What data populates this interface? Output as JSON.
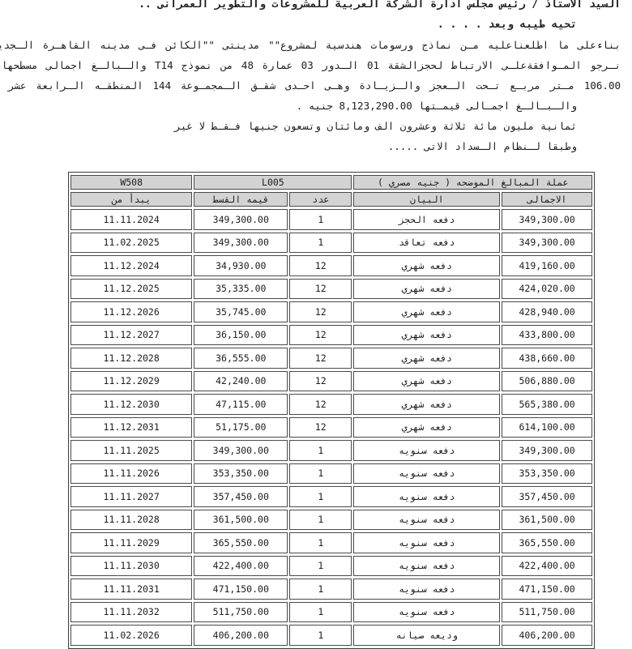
{
  "page": {
    "background": "#ffffff",
    "text_color": "#1c1c1c",
    "table_header_bg": "#d3d3d3",
    "table_border_color": "#3c3c3c"
  },
  "document": {
    "title_line": "السيد الاستاذ / رئيس مجلس ادارة الشركة العربية للمشروعات والتطوير العمرانى ..",
    "greeting": "تحيه طيبه وبعد . . . .",
    "body_lines": [
      "بناءعلى ما اطلعناعليه مـن نماذج ورسومات هندسية لمشروع\"\" مدينتى \"\"الكائن فـى مدينه القاهـرة الـجديـده",
      "نـرجو المـوافقةعلـى الارتباط لحجزالشقة 01 الـدور 03 عمارة 48 من نموذج T14 والـبالـغ اجمالى مسطحها",
      "106.00 مـتر مربـع تـحت الـعجز والـزيـادة وهـى احـدى شقـق الـمجمـوعة 144 المنطقـه الـرابعة عشر",
      "والـبـالـغ اجمـالى قيمـتها 8,123,290.00 جنيه .",
      "ثمانية مليون مائة ثلاثة وعشرون الف ومائتان وتسعون جنيها فـقـط لا غير",
      "وطبقا لـنظام الـسداد الاتى ....."
    ]
  },
  "table": {
    "group_header": {
      "unit_code": "W508",
      "location_code": "L005",
      "currency_note": "عملة المبالغ الموضحه ( جنيه مصري )"
    },
    "columns": [
      "يبدأ من",
      "قيمه القسط",
      "عدد",
      "البيان",
      "الاجمالى"
    ],
    "rows": [
      [
        "11.11.2024",
        "349,300.00",
        "1",
        "دفعه الحجز",
        "349,300.00"
      ],
      [
        "11.02.2025",
        "349,300.00",
        "1",
        "دفعه تعاقد",
        "349,300.00"
      ],
      [
        "11.12.2024",
        "34,930.00",
        "12",
        "دفعه شهري",
        "419,160.00"
      ],
      [
        "11.12.2025",
        "35,335.00",
        "12",
        "دفعه شهري",
        "424,020.00"
      ],
      [
        "11.12.2026",
        "35,745.00",
        "12",
        "دفعه شهري",
        "428,940.00"
      ],
      [
        "11.12.2027",
        "36,150.00",
        "12",
        "دفعه شهري",
        "433,800.00"
      ],
      [
        "11.12.2028",
        "36,555.00",
        "12",
        "دفعه شهري",
        "438,660.00"
      ],
      [
        "11.12.2029",
        "42,240.00",
        "12",
        "دفعه شهري",
        "506,880.00"
      ],
      [
        "11.12.2030",
        "47,115.00",
        "12",
        "دفعه شهري",
        "565,380.00"
      ],
      [
        "11.12.2031",
        "51,175.00",
        "12",
        "دفعه شهري",
        "614,100.00"
      ],
      [
        "11.11.2025",
        "349,300.00",
        "1",
        "دفعه سنويه",
        "349,300.00"
      ],
      [
        "11.11.2026",
        "353,350.00",
        "1",
        "دفعه سنويه",
        "353,350.00"
      ],
      [
        "11.11.2027",
        "357,450.00",
        "1",
        "دفعه سنويه",
        "357,450.00"
      ],
      [
        "11.11.2028",
        "361,500.00",
        "1",
        "دفعه سنويه",
        "361,500.00"
      ],
      [
        "11.11.2029",
        "365,550.00",
        "1",
        "دفعه سنويه",
        "365,550.00"
      ],
      [
        "11.11.2030",
        "422,400.00",
        "1",
        "دفعه سنويه",
        "422,400.00"
      ],
      [
        "11.11.2031",
        "471,150.00",
        "1",
        "دفعه سنويه",
        "471,150.00"
      ],
      [
        "11.11.2032",
        "511,750.00",
        "1",
        "دفعه سنويه",
        "511,750.00"
      ],
      [
        "11.02.2026",
        "406,200.00",
        "1",
        "وديعه صيانه",
        "406,200.00"
      ]
    ]
  }
}
